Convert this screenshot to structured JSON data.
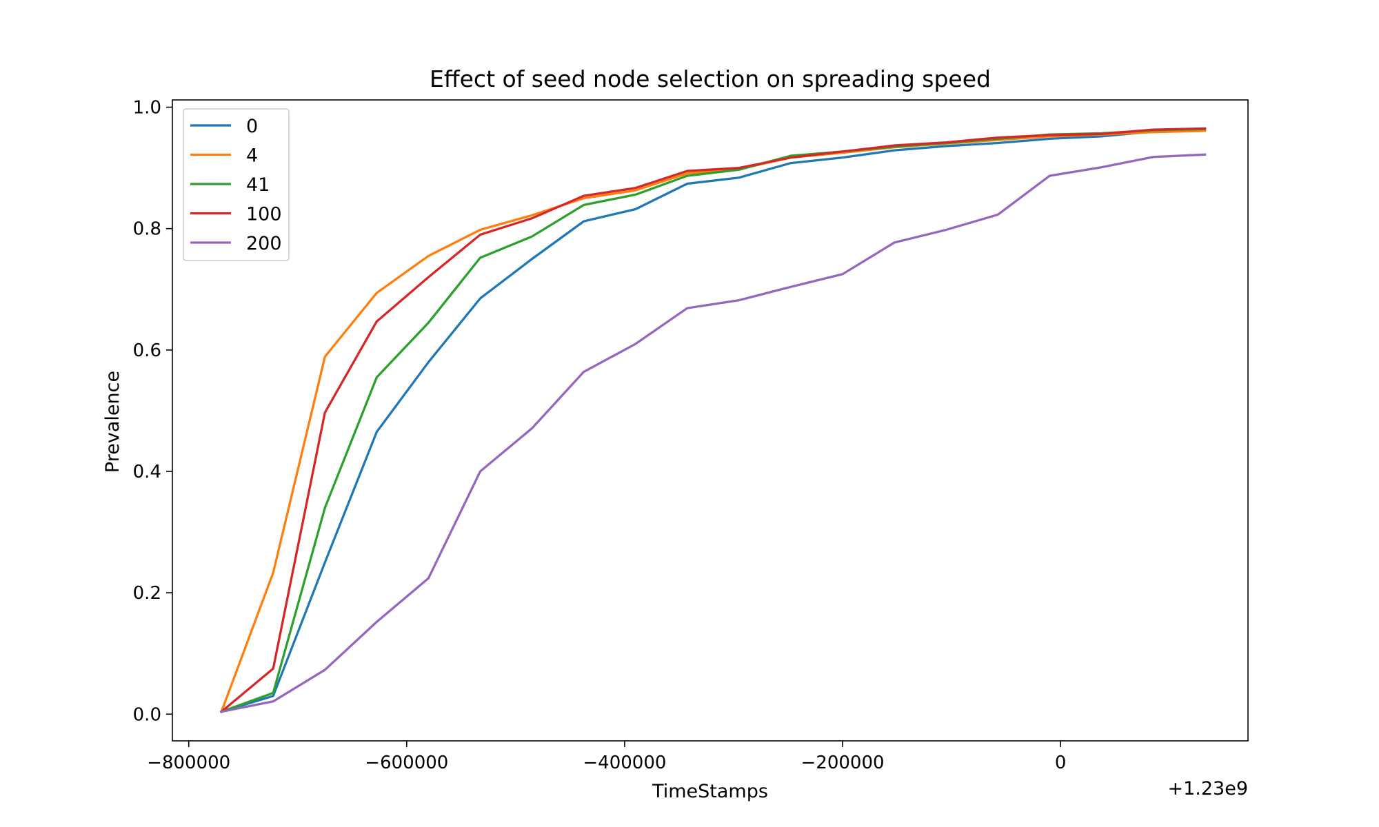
{
  "chart_data": {
    "type": "line",
    "title": "Effect of seed node selection on spreading speed",
    "xlabel": "TimeStamps",
    "ylabel": "Prevalence",
    "x_offset_label": "+1.23e9",
    "xlim": [
      -815000,
      172000
    ],
    "ylim": [
      -0.044,
      1.012
    ],
    "x_ticks": [
      -800000,
      -600000,
      -400000,
      -200000,
      0
    ],
    "x_tick_labels": [
      "−800000",
      "−600000",
      "−400000",
      "−200000",
      "0"
    ],
    "y_ticks": [
      0.0,
      0.2,
      0.4,
      0.6,
      0.8,
      1.0
    ],
    "y_tick_labels": [
      "0.0",
      "0.2",
      "0.4",
      "0.6",
      "0.8",
      "1.0"
    ],
    "grid": false,
    "legend_position": "top-left",
    "x": [
      -770000,
      -722500,
      -675000,
      -627500,
      -580000,
      -532500,
      -485000,
      -437500,
      -390000,
      -342500,
      -295000,
      -247500,
      -200000,
      -152500,
      -105000,
      -57500,
      -10000,
      37500,
      85000,
      132500
    ],
    "series": [
      {
        "name": "0",
        "color": "#1f77b4",
        "values": [
          0.004,
          0.03,
          0.25,
          0.465,
          0.58,
          0.685,
          0.75,
          0.812,
          0.832,
          0.874,
          0.884,
          0.908,
          0.917,
          0.929,
          0.936,
          0.941,
          0.948,
          0.952,
          0.96,
          0.962
        ]
      },
      {
        "name": "4",
        "color": "#ff7f0e",
        "values": [
          0.004,
          0.233,
          0.589,
          0.694,
          0.755,
          0.798,
          0.822,
          0.85,
          0.863,
          0.891,
          0.898,
          0.917,
          0.925,
          0.934,
          0.94,
          0.946,
          0.952,
          0.955,
          0.959,
          0.961
        ]
      },
      {
        "name": "41",
        "color": "#2ca02c",
        "values": [
          0.004,
          0.035,
          0.34,
          0.555,
          0.645,
          0.752,
          0.787,
          0.839,
          0.856,
          0.887,
          0.897,
          0.92,
          0.927,
          0.935,
          0.941,
          0.948,
          0.955,
          0.957,
          0.962,
          0.964
        ]
      },
      {
        "name": "100",
        "color": "#d62728",
        "values": [
          0.004,
          0.075,
          0.497,
          0.647,
          0.72,
          0.79,
          0.817,
          0.854,
          0.867,
          0.895,
          0.9,
          0.917,
          0.927,
          0.937,
          0.942,
          0.95,
          0.954,
          0.956,
          0.963,
          0.965
        ]
      },
      {
        "name": "200",
        "color": "#9467bd",
        "values": [
          0.004,
          0.021,
          0.073,
          0.152,
          0.224,
          0.4,
          0.471,
          0.564,
          0.61,
          0.669,
          0.682,
          0.704,
          0.725,
          0.777,
          0.798,
          0.823,
          0.887,
          0.901,
          0.918,
          0.922
        ]
      }
    ]
  }
}
